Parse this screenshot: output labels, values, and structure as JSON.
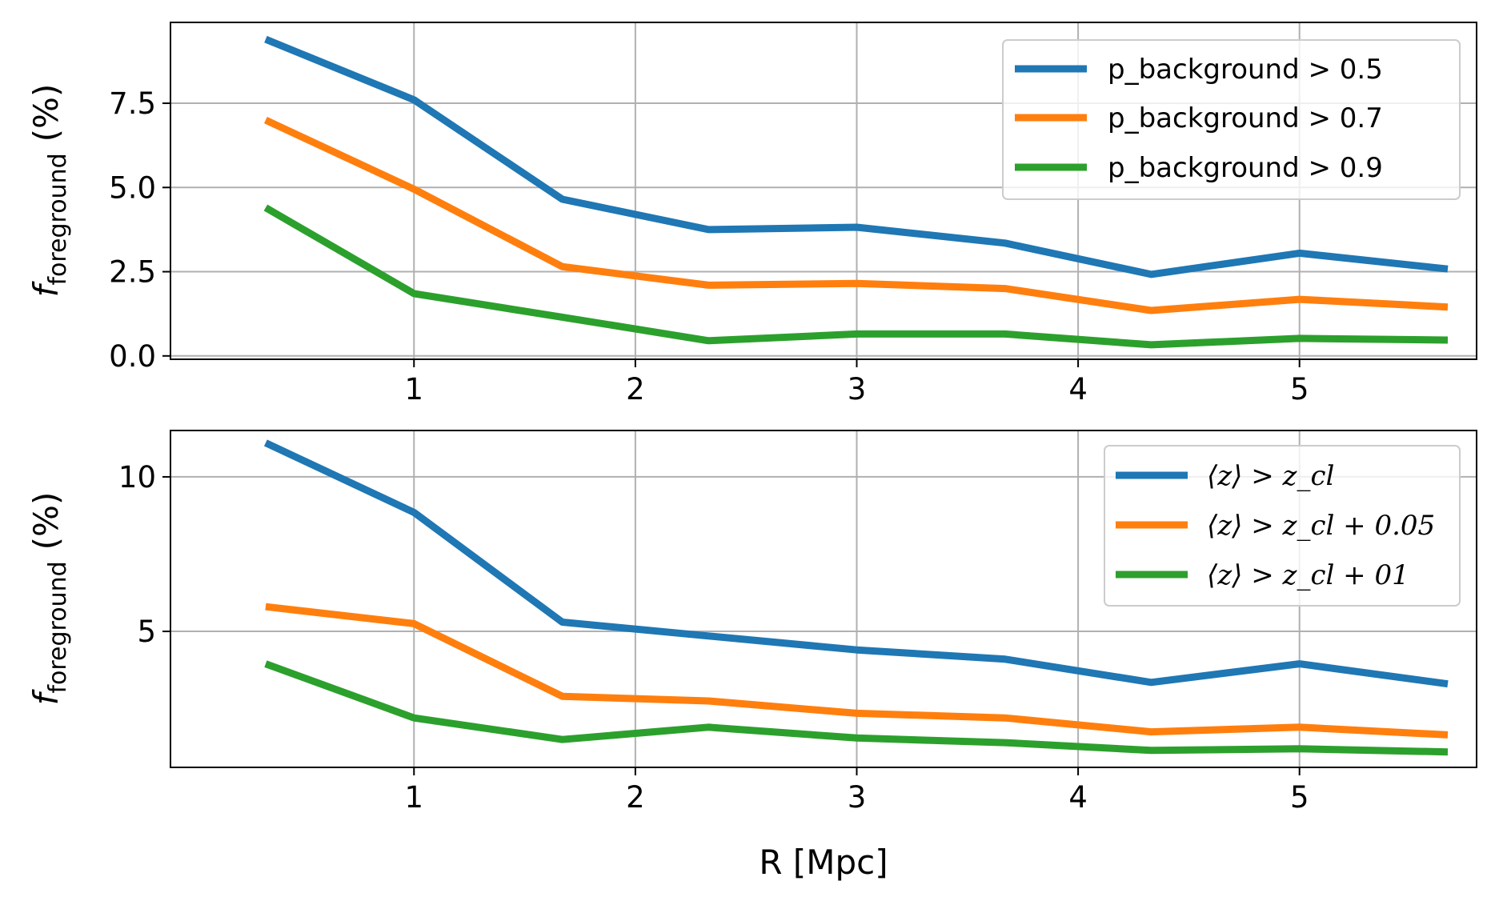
{
  "chart_data": [
    {
      "type": "line",
      "xlabel": "",
      "ylabel": {
        "base": "f",
        "sub": "foreground",
        "unit": "(%)"
      },
      "xlim": [
        -0.1,
        5.8
      ],
      "ylim": [
        -0.1,
        9.9
      ],
      "xticks": [
        1,
        2,
        3,
        4,
        5
      ],
      "xtick_labels": [
        "1",
        "2",
        "3",
        "4",
        "5"
      ],
      "yticks": [
        0.0,
        2.5,
        5.0,
        7.5
      ],
      "ytick_labels": [
        "0.0",
        "2.5",
        "5.0",
        "7.5"
      ],
      "grid": true,
      "legend_position": "top-right",
      "x": [
        0.33,
        1.0,
        1.67,
        2.33,
        3.0,
        3.67,
        4.33,
        5.0,
        5.67
      ],
      "series": [
        {
          "name": "p_background > 0.5",
          "color": "#1f77b4",
          "values": [
            9.4,
            7.6,
            4.65,
            3.75,
            3.82,
            3.35,
            2.42,
            3.05,
            2.58
          ]
        },
        {
          "name": "p_background > 0.7",
          "color": "#ff7f0e",
          "values": [
            7.0,
            4.95,
            2.65,
            2.1,
            2.15,
            2.0,
            1.35,
            1.68,
            1.45
          ]
        },
        {
          "name": "p_background > 0.9",
          "color": "#2ca02c",
          "values": [
            4.4,
            1.85,
            1.15,
            0.45,
            0.65,
            0.65,
            0.33,
            0.52,
            0.47
          ]
        }
      ]
    },
    {
      "type": "line",
      "xlabel": "R [Mpc]",
      "ylabel": {
        "base": "f",
        "sub": "foreground",
        "unit": "(%)"
      },
      "xlim": [
        -0.1,
        5.8
      ],
      "ylim": [
        0.6,
        11.5
      ],
      "xticks": [
        1,
        2,
        3,
        4,
        5
      ],
      "xtick_labels": [
        "1",
        "2",
        "3",
        "4",
        "5"
      ],
      "yticks": [
        5,
        10
      ],
      "ytick_labels": [
        "5",
        "10"
      ],
      "grid": true,
      "legend_position": "top-right",
      "x": [
        0.33,
        1.0,
        1.67,
        2.33,
        3.0,
        3.67,
        4.33,
        5.0,
        5.67
      ],
      "series": [
        {
          "name": "⟨z⟩ > z_cl",
          "color": "#1f77b4",
          "values": [
            11.1,
            8.85,
            5.3,
            4.85,
            4.4,
            4.1,
            3.35,
            3.95,
            3.3
          ]
        },
        {
          "name": "⟨z⟩ > z_cl + 0.05",
          "color": "#ff7f0e",
          "values": [
            5.8,
            5.25,
            2.9,
            2.75,
            2.35,
            2.2,
            1.75,
            1.9,
            1.65
          ]
        },
        {
          "name": "⟨z⟩ > z_cl + 01",
          "color": "#2ca02c",
          "values": [
            3.95,
            2.2,
            1.5,
            1.9,
            1.55,
            1.4,
            1.15,
            1.2,
            1.1
          ]
        }
      ]
    }
  ]
}
